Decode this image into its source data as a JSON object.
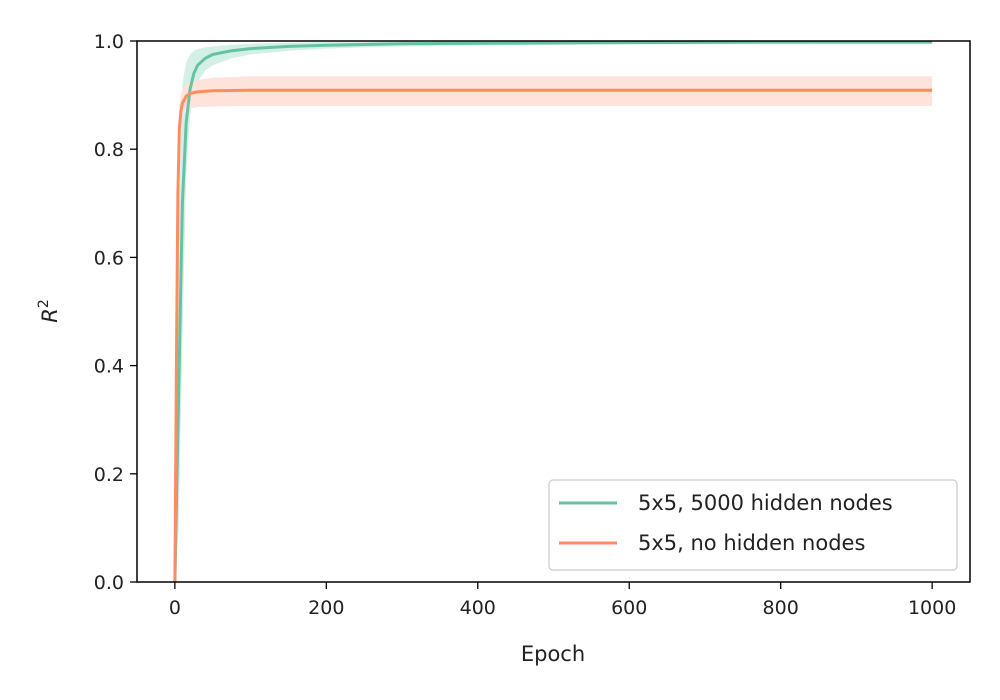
{
  "chart_data": {
    "type": "line",
    "xlabel": "Epoch",
    "ylabel_base": "R",
    "ylabel_sup": "2",
    "xlim": [
      -50,
      1050
    ],
    "ylim": [
      0.0,
      1.0
    ],
    "xticks": [
      0,
      200,
      400,
      600,
      800,
      1000
    ],
    "xtick_labels": [
      "0",
      "200",
      "400",
      "600",
      "800",
      "1000"
    ],
    "yticks": [
      0.0,
      0.2,
      0.4,
      0.6,
      0.8,
      1.0
    ],
    "ytick_labels": [
      "0.0",
      "0.2",
      "0.4",
      "0.6",
      "0.8",
      "1.0"
    ],
    "grid": false,
    "legend_position": "lower-right",
    "series": [
      {
        "name": "5x5, 5000 hidden nodes",
        "color": "#66c2a5",
        "band_color": "#d4efe6",
        "x": [
          0,
          5,
          10,
          15,
          20,
          25,
          30,
          40,
          50,
          75,
          100,
          150,
          200,
          300,
          400,
          600,
          800,
          1000
        ],
        "y": [
          0.0,
          0.35,
          0.7,
          0.85,
          0.91,
          0.94,
          0.955,
          0.968,
          0.975,
          0.982,
          0.986,
          0.99,
          0.992,
          0.995,
          0.996,
          0.997,
          0.998,
          0.998
        ],
        "band_lower": [
          0.0,
          0.1,
          0.45,
          0.75,
          0.86,
          0.9,
          0.925,
          0.945,
          0.955,
          0.968,
          0.975,
          0.982,
          0.986,
          0.99,
          0.992,
          0.994,
          0.995,
          0.996
        ],
        "band_upper": [
          0.0,
          0.65,
          0.92,
          0.96,
          0.975,
          0.982,
          0.985,
          0.988,
          0.99,
          0.993,
          0.995,
          0.997,
          0.998,
          0.999,
          0.999,
          1.0,
          1.0,
          1.0
        ]
      },
      {
        "name": "5x5, no hidden nodes",
        "color": "#fc8d62",
        "band_color": "#fde3d9",
        "x": [
          0,
          2,
          4,
          6,
          8,
          10,
          15,
          20,
          30,
          50,
          100,
          200,
          400,
          600,
          800,
          1000
        ],
        "y": [
          0.0,
          0.4,
          0.72,
          0.84,
          0.87,
          0.885,
          0.898,
          0.903,
          0.906,
          0.908,
          0.909,
          0.909,
          0.909,
          0.909,
          0.909,
          0.909
        ],
        "band_lower": [
          0.0,
          0.3,
          0.62,
          0.78,
          0.84,
          0.86,
          0.87,
          0.875,
          0.878,
          0.879,
          0.88,
          0.88,
          0.88,
          0.88,
          0.88,
          0.88
        ],
        "band_upper": [
          0.0,
          0.5,
          0.8,
          0.88,
          0.9,
          0.91,
          0.92,
          0.925,
          0.928,
          0.932,
          0.935,
          0.935,
          0.935,
          0.935,
          0.935,
          0.935
        ]
      }
    ]
  }
}
